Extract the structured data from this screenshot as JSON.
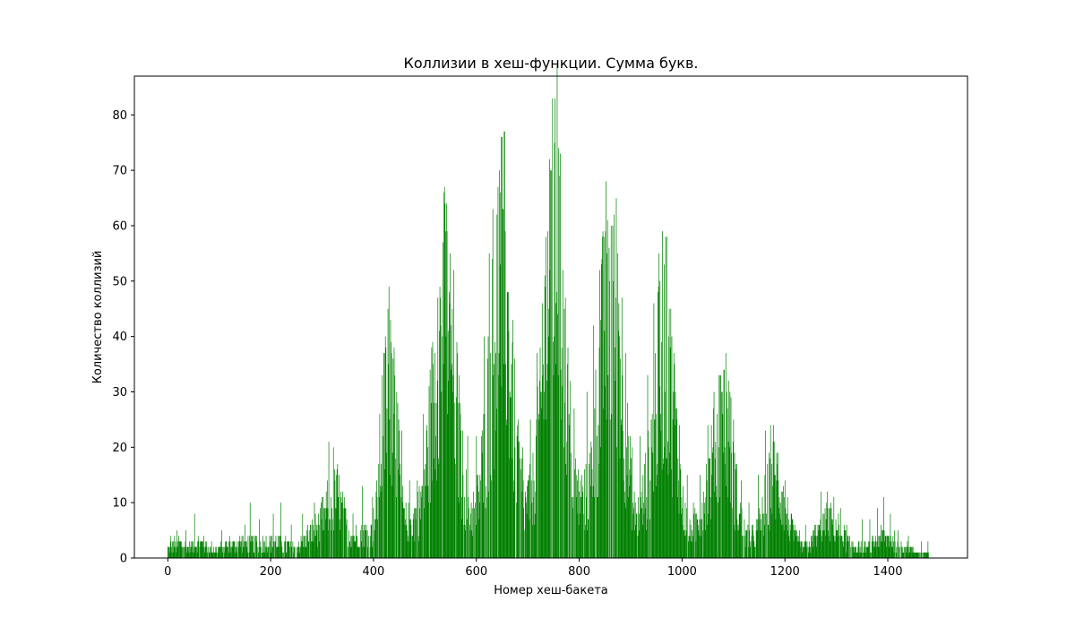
{
  "chart_data": {
    "type": "bar",
    "title": "Коллизии в хеш-функции. Сумма букв.",
    "xlabel": "Номер хеш-бакета",
    "ylabel": "Количество коллизий",
    "xlim": [
      -65,
      1555
    ],
    "ylim": [
      0,
      87
    ],
    "xticks": [
      0,
      200,
      400,
      600,
      800,
      1000,
      1200,
      1400
    ],
    "yticks": [
      0,
      10,
      20,
      30,
      40,
      50,
      60,
      70,
      80
    ],
    "bar_width": 1,
    "color": "#008000",
    "grid": false,
    "bucket_count": 1480,
    "envelope": [
      [
        0,
        2
      ],
      [
        20,
        3
      ],
      [
        40,
        2
      ],
      [
        60,
        3
      ],
      [
        80,
        2
      ],
      [
        100,
        2
      ],
      [
        140,
        3
      ],
      [
        160,
        3
      ],
      [
        180,
        3
      ],
      [
        200,
        3
      ],
      [
        220,
        3
      ],
      [
        240,
        2
      ],
      [
        260,
        3
      ],
      [
        280,
        5
      ],
      [
        300,
        7
      ],
      [
        315,
        11
      ],
      [
        330,
        12
      ],
      [
        345,
        7
      ],
      [
        360,
        4
      ],
      [
        380,
        5
      ],
      [
        395,
        5
      ],
      [
        405,
        9
      ],
      [
        415,
        22
      ],
      [
        425,
        31
      ],
      [
        432,
        38
      ],
      [
        440,
        32
      ],
      [
        450,
        16
      ],
      [
        460,
        7
      ],
      [
        475,
        7
      ],
      [
        490,
        10
      ],
      [
        505,
        20
      ],
      [
        520,
        35
      ],
      [
        535,
        47
      ],
      [
        545,
        49
      ],
      [
        555,
        38
      ],
      [
        570,
        18
      ],
      [
        585,
        9
      ],
      [
        600,
        10
      ],
      [
        615,
        20
      ],
      [
        630,
        38
      ],
      [
        645,
        56
      ],
      [
        655,
        54
      ],
      [
        665,
        38
      ],
      [
        680,
        18
      ],
      [
        695,
        10
      ],
      [
        710,
        14
      ],
      [
        725,
        27
      ],
      [
        735,
        45
      ],
      [
        748,
        62
      ],
      [
        760,
        56
      ],
      [
        775,
        32
      ],
      [
        790,
        15
      ],
      [
        805,
        10
      ],
      [
        820,
        14
      ],
      [
        835,
        28
      ],
      [
        850,
        47
      ],
      [
        862,
        53
      ],
      [
        875,
        48
      ],
      [
        890,
        25
      ],
      [
        905,
        9
      ],
      [
        920,
        9
      ],
      [
        935,
        17
      ],
      [
        950,
        31
      ],
      [
        962,
        42
      ],
      [
        972,
        40
      ],
      [
        985,
        27
      ],
      [
        1000,
        10
      ],
      [
        1015,
        5
      ],
      [
        1030,
        7
      ],
      [
        1045,
        13
      ],
      [
        1060,
        18
      ],
      [
        1075,
        26
      ],
      [
        1085,
        27
      ],
      [
        1095,
        21
      ],
      [
        1110,
        9
      ],
      [
        1125,
        4
      ],
      [
        1140,
        4
      ],
      [
        1155,
        8
      ],
      [
        1170,
        14
      ],
      [
        1180,
        16
      ],
      [
        1195,
        13
      ],
      [
        1210,
        6
      ],
      [
        1225,
        3
      ],
      [
        1235,
        2
      ],
      [
        1250,
        3
      ],
      [
        1265,
        5
      ],
      [
        1280,
        7
      ],
      [
        1295,
        7
      ],
      [
        1310,
        5
      ],
      [
        1325,
        3
      ],
      [
        1345,
        2
      ],
      [
        1365,
        2
      ],
      [
        1385,
        4
      ],
      [
        1400,
        4
      ],
      [
        1420,
        3
      ],
      [
        1440,
        2
      ],
      [
        1460,
        1
      ],
      [
        1480,
        1
      ]
    ],
    "spikes": [
      [
        5,
        4
      ],
      [
        18,
        5
      ],
      [
        35,
        5
      ],
      [
        52,
        8
      ],
      [
        70,
        4
      ],
      [
        105,
        5
      ],
      [
        120,
        4
      ],
      [
        150,
        6
      ],
      [
        160,
        10
      ],
      [
        178,
        7
      ],
      [
        205,
        8
      ],
      [
        220,
        10
      ],
      [
        240,
        6
      ],
      [
        262,
        8
      ],
      [
        285,
        10
      ],
      [
        300,
        11
      ],
      [
        313,
        21
      ],
      [
        322,
        20
      ],
      [
        330,
        17
      ],
      [
        360,
        8
      ],
      [
        378,
        13
      ],
      [
        398,
        11
      ],
      [
        417,
        33
      ],
      [
        423,
        40
      ],
      [
        428,
        45
      ],
      [
        433,
        43
      ],
      [
        438,
        36
      ],
      [
        445,
        30
      ],
      [
        455,
        23
      ],
      [
        470,
        14
      ],
      [
        485,
        14
      ],
      [
        497,
        26
      ],
      [
        515,
        39
      ],
      [
        525,
        47
      ],
      [
        535,
        57
      ],
      [
        540,
        59
      ],
      [
        547,
        48
      ],
      [
        553,
        45
      ],
      [
        568,
        28
      ],
      [
        583,
        22
      ],
      [
        600,
        22
      ],
      [
        615,
        40
      ],
      [
        625,
        55
      ],
      [
        632,
        63
      ],
      [
        640,
        62
      ],
      [
        645,
        70
      ],
      [
        648,
        76
      ],
      [
        652,
        63
      ],
      [
        660,
        48
      ],
      [
        670,
        39
      ],
      [
        680,
        24
      ],
      [
        690,
        20
      ],
      [
        705,
        25
      ],
      [
        718,
        37
      ],
      [
        728,
        46
      ],
      [
        735,
        58
      ],
      [
        742,
        72
      ],
      [
        748,
        83
      ],
      [
        752,
        75
      ],
      [
        757,
        89
      ],
      [
        762,
        69
      ],
      [
        768,
        52
      ],
      [
        778,
        38
      ],
      [
        790,
        27
      ],
      [
        805,
        15
      ],
      [
        815,
        30
      ],
      [
        828,
        42
      ],
      [
        840,
        52
      ],
      [
        848,
        58
      ],
      [
        855,
        61
      ],
      [
        862,
        60
      ],
      [
        868,
        62
      ],
      [
        875,
        55
      ],
      [
        883,
        47
      ],
      [
        890,
        37
      ],
      [
        903,
        20
      ],
      [
        918,
        22
      ],
      [
        933,
        33
      ],
      [
        945,
        46
      ],
      [
        955,
        55
      ],
      [
        962,
        59
      ],
      [
        968,
        58
      ],
      [
        975,
        45
      ],
      [
        985,
        35
      ],
      [
        995,
        24
      ],
      [
        1010,
        15
      ],
      [
        1022,
        10
      ],
      [
        1035,
        15
      ],
      [
        1050,
        24
      ],
      [
        1062,
        30
      ],
      [
        1072,
        33
      ],
      [
        1078,
        30
      ],
      [
        1085,
        37
      ],
      [
        1093,
        30
      ],
      [
        1100,
        25
      ],
      [
        1115,
        14
      ],
      [
        1130,
        10
      ],
      [
        1148,
        15
      ],
      [
        1162,
        23
      ],
      [
        1172,
        24
      ],
      [
        1178,
        24
      ],
      [
        1186,
        19
      ],
      [
        1200,
        14
      ],
      [
        1215,
        7
      ],
      [
        1228,
        5
      ],
      [
        1240,
        6
      ],
      [
        1258,
        6
      ],
      [
        1270,
        12
      ],
      [
        1282,
        12
      ],
      [
        1295,
        11
      ],
      [
        1308,
        9
      ],
      [
        1320,
        6
      ],
      [
        1350,
        7
      ],
      [
        1365,
        7
      ],
      [
        1380,
        9
      ],
      [
        1392,
        11
      ],
      [
        1405,
        8
      ],
      [
        1420,
        5
      ],
      [
        1440,
        4
      ],
      [
        1465,
        3
      ],
      [
        1478,
        3
      ]
    ]
  }
}
